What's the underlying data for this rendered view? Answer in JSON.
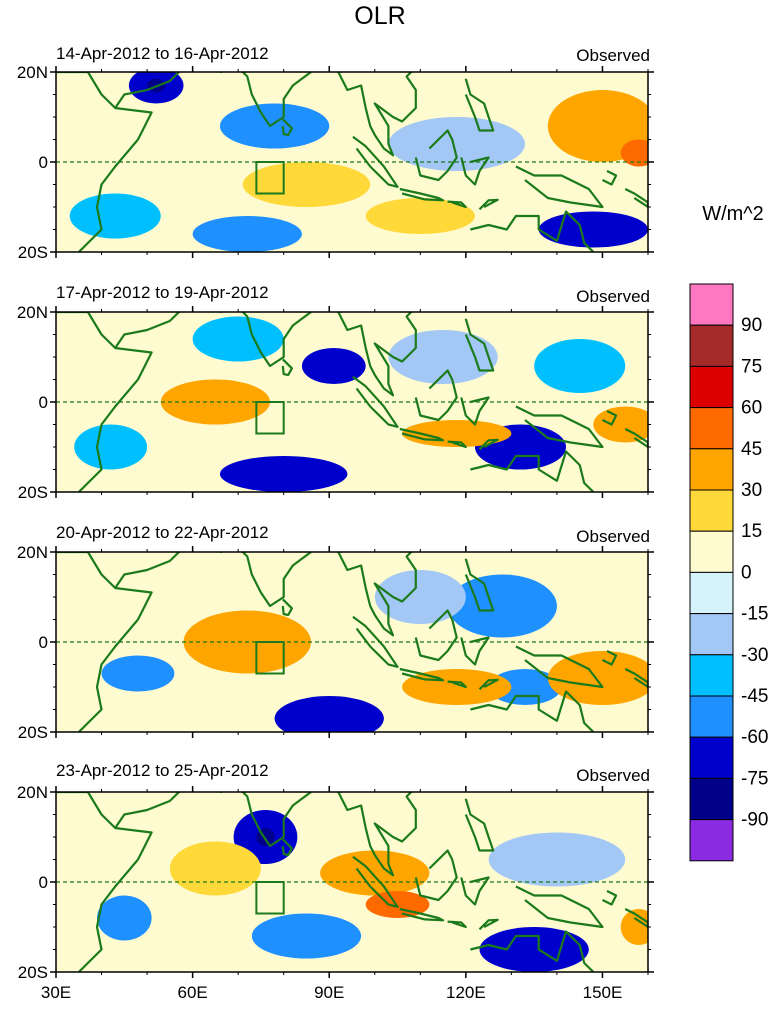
{
  "chart_data": {
    "type": "heatmap",
    "title": "OLR",
    "units": "W/m^2",
    "colorbar": {
      "levels": [
        -90,
        -75,
        -60,
        -45,
        -30,
        -15,
        0,
        15,
        30,
        45,
        60,
        75,
        90
      ],
      "colors": [
        "#8a2be2",
        "#00008b",
        "#0000cd",
        "#1e90ff",
        "#00bfff",
        "#a3c8f5",
        "#d6f3fb",
        "#fffbd0",
        "#ffd83a",
        "#ffa500",
        "#ff6a00",
        "#dd0000",
        "#a52a2a",
        "#ff77c0"
      ],
      "tick_labels": [
        "-90",
        "-75",
        "-60",
        "-45",
        "-30",
        "-15",
        "0",
        "15",
        "30",
        "45",
        "60",
        "75",
        "90"
      ]
    },
    "x_axis": {
      "range": [
        30,
        160
      ],
      "ticks": [
        30,
        60,
        90,
        120,
        150
      ],
      "tick_labels": [
        "30E",
        "60E",
        "90E",
        "120E",
        "150E"
      ],
      "minor_step": 10
    },
    "y_axis": {
      "range": [
        -20,
        20
      ],
      "ticks": [
        20,
        0,
        -20
      ],
      "tick_labels": [
        "20N",
        "0",
        "20S"
      ],
      "minor_step": 5
    },
    "region_box": {
      "lon": [
        74,
        80
      ],
      "lat": [
        -7,
        0
      ]
    },
    "panels": [
      {
        "period": "14-Apr-2012 to 16-Apr-2012",
        "label": "Observed",
        "anomalies": [
          {
            "lon": 52,
            "lat": 17,
            "rx": 6,
            "ry": 4,
            "v": -75
          },
          {
            "lon": 52,
            "lat": 17,
            "rx": 2,
            "ry": 1.5,
            "v": -90
          },
          {
            "lon": 78,
            "lat": 8,
            "rx": 12,
            "ry": 5,
            "v": -60
          },
          {
            "lon": 43,
            "lat": -12,
            "rx": 10,
            "ry": 5,
            "v": -45
          },
          {
            "lon": 72,
            "lat": -16,
            "rx": 12,
            "ry": 4,
            "v": -60
          },
          {
            "lon": 148,
            "lat": -15,
            "rx": 12,
            "ry": 4,
            "v": -75
          },
          {
            "lon": 118,
            "lat": 4,
            "rx": 15,
            "ry": 6,
            "v": -30
          },
          {
            "lon": 150,
            "lat": 8,
            "rx": 12,
            "ry": 8,
            "v": 30
          },
          {
            "lon": 158,
            "lat": 2,
            "rx": 4,
            "ry": 3,
            "v": 45
          },
          {
            "lon": 85,
            "lat": -5,
            "rx": 14,
            "ry": 5,
            "v": 15
          },
          {
            "lon": 110,
            "lat": -12,
            "rx": 12,
            "ry": 4,
            "v": 15
          }
        ]
      },
      {
        "period": "17-Apr-2012 to 19-Apr-2012",
        "label": "Observed",
        "anomalies": [
          {
            "lon": 70,
            "lat": 14,
            "rx": 10,
            "ry": 5,
            "v": -45
          },
          {
            "lon": 91,
            "lat": 8,
            "rx": 7,
            "ry": 4,
            "v": -75
          },
          {
            "lon": 80,
            "lat": -16,
            "rx": 14,
            "ry": 4,
            "v": -75
          },
          {
            "lon": 42,
            "lat": -10,
            "rx": 8,
            "ry": 5,
            "v": -45
          },
          {
            "lon": 132,
            "lat": -10,
            "rx": 10,
            "ry": 5,
            "v": -75
          },
          {
            "lon": 115,
            "lat": 10,
            "rx": 12,
            "ry": 6,
            "v": -30
          },
          {
            "lon": 145,
            "lat": 8,
            "rx": 10,
            "ry": 6,
            "v": -45
          },
          {
            "lon": 65,
            "lat": 0,
            "rx": 12,
            "ry": 5,
            "v": 30
          },
          {
            "lon": 118,
            "lat": -7,
            "rx": 12,
            "ry": 3,
            "v": 30
          },
          {
            "lon": 155,
            "lat": -5,
            "rx": 7,
            "ry": 4,
            "v": 30
          }
        ]
      },
      {
        "period": "20-Apr-2012 to 22-Apr-2012",
        "label": "Observed",
        "anomalies": [
          {
            "lon": 90,
            "lat": -17,
            "rx": 12,
            "ry": 5,
            "v": -75
          },
          {
            "lon": 128,
            "lat": 8,
            "rx": 12,
            "ry": 7,
            "v": -60
          },
          {
            "lon": 48,
            "lat": -7,
            "rx": 8,
            "ry": 4,
            "v": -60
          },
          {
            "lon": 133,
            "lat": -10,
            "rx": 8,
            "ry": 4,
            "v": -60
          },
          {
            "lon": 110,
            "lat": 10,
            "rx": 10,
            "ry": 6,
            "v": -30
          },
          {
            "lon": 72,
            "lat": 0,
            "rx": 14,
            "ry": 7,
            "v": 30
          },
          {
            "lon": 150,
            "lat": -8,
            "rx": 12,
            "ry": 6,
            "v": 30
          },
          {
            "lon": 118,
            "lat": -10,
            "rx": 12,
            "ry": 4,
            "v": 30
          }
        ]
      },
      {
        "period": "23-Apr-2012 to 25-Apr-2012",
        "label": "Observed",
        "anomalies": [
          {
            "lon": 76,
            "lat": 10,
            "rx": 7,
            "ry": 6,
            "v": -75
          },
          {
            "lon": 76,
            "lat": 10,
            "rx": 2,
            "ry": 2,
            "v": -90
          },
          {
            "lon": 45,
            "lat": -8,
            "rx": 6,
            "ry": 5,
            "v": -60
          },
          {
            "lon": 85,
            "lat": -12,
            "rx": 12,
            "ry": 5,
            "v": -60
          },
          {
            "lon": 135,
            "lat": -15,
            "rx": 12,
            "ry": 5,
            "v": -75
          },
          {
            "lon": 140,
            "lat": 5,
            "rx": 15,
            "ry": 6,
            "v": -30
          },
          {
            "lon": 100,
            "lat": 2,
            "rx": 12,
            "ry": 5,
            "v": 30
          },
          {
            "lon": 105,
            "lat": -5,
            "rx": 7,
            "ry": 3,
            "v": 45
          },
          {
            "lon": 65,
            "lat": 3,
            "rx": 10,
            "ry": 6,
            "v": 15
          },
          {
            "lon": 158,
            "lat": -10,
            "rx": 4,
            "ry": 4,
            "v": 30
          }
        ]
      }
    ]
  }
}
